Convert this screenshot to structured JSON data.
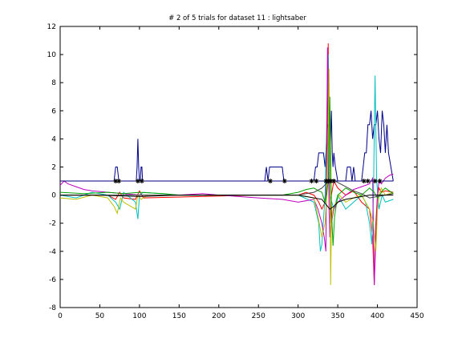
{
  "chart_data": {
    "type": "line",
    "title": "# 2 of 5 trials for dataset 11 : lightsaber",
    "xlabel": "",
    "ylabel": "",
    "xlim": [
      0,
      450
    ],
    "ylim": [
      -8,
      12
    ],
    "xticks": [
      0,
      50,
      100,
      150,
      200,
      250,
      300,
      350,
      400,
      450
    ],
    "yticks": [
      -8,
      -6,
      -4,
      -2,
      0,
      2,
      4,
      6,
      8,
      10,
      12
    ],
    "grid": false,
    "threshold_line": {
      "y": 1,
      "x": [
        0,
        420
      ],
      "color": "#000080"
    },
    "markers": {
      "y": 1,
      "x": [
        70,
        74,
        98,
        103,
        265,
        283,
        317,
        323,
        335,
        338,
        341,
        345,
        383,
        388,
        397,
        403
      ],
      "symbol": "*",
      "color": "#000000"
    },
    "series": [
      {
        "color": "#00008b",
        "x": [
          0,
          68,
          70,
          72,
          74,
          76,
          78,
          96,
          97,
          98,
          99,
          100,
          101,
          102,
          103,
          104,
          105,
          258,
          260,
          262,
          264,
          266,
          280,
          282,
          284,
          320,
          322,
          324,
          326,
          328,
          330,
          332,
          334,
          336,
          337,
          338,
          339,
          340,
          341,
          342,
          343,
          344,
          345,
          347,
          350,
          352,
          360,
          362,
          364,
          366,
          368,
          370,
          372,
          380,
          382,
          384,
          386,
          388,
          390,
          392,
          394,
          396,
          398,
          400,
          402,
          404,
          406,
          408,
          410,
          412,
          414,
          420
        ],
        "y": [
          1,
          1,
          2,
          2,
          1,
          1,
          1,
          1,
          2,
          4,
          2,
          1,
          1,
          2,
          2,
          1,
          1,
          1,
          2,
          1,
          2,
          2,
          2,
          1,
          1,
          1,
          2,
          2,
          3,
          3,
          3,
          3,
          2,
          4,
          5,
          5,
          3,
          2,
          4,
          6,
          3,
          2,
          3,
          2,
          1,
          1,
          1,
          2,
          2,
          2,
          1,
          2,
          1,
          1,
          2,
          3,
          3,
          5,
          5,
          6,
          4,
          5,
          5,
          6,
          4,
          3,
          6,
          5,
          3,
          5,
          3,
          1
        ]
      },
      {
        "color": "#ff0000",
        "x": [
          0,
          60,
          70,
          75,
          80,
          95,
          100,
          105,
          250,
          300,
          310,
          320,
          326,
          330,
          334,
          336,
          337,
          338,
          339,
          340,
          341,
          342,
          345,
          350,
          360,
          370,
          380,
          390,
          394,
          396,
          398,
          400,
          402,
          405,
          410,
          420
        ],
        "y": [
          0,
          0,
          -0.3,
          0.2,
          -0.2,
          -0.3,
          0.3,
          -0.2,
          0,
          0,
          0.2,
          0,
          -0.5,
          -1,
          -0.5,
          1,
          5,
          10.8,
          4,
          0,
          -2,
          0,
          1,
          0.5,
          0,
          0.3,
          -0.5,
          -1,
          -3,
          -6.4,
          -2,
          0,
          0.5,
          0.2,
          0.3,
          0.2
        ]
      },
      {
        "color": "#00bfbf",
        "x": [
          0,
          20,
          40,
          60,
          70,
          75,
          80,
          95,
          98,
          100,
          105,
          150,
          250,
          300,
          320,
          326,
          328,
          330,
          334,
          336,
          338,
          340,
          345,
          350,
          360,
          380,
          385,
          390,
          393,
          395,
          397,
          399,
          402,
          406,
          410,
          420
        ],
        "y": [
          0,
          -0.2,
          0.2,
          0,
          -0.5,
          -1,
          0.2,
          -0.5,
          -1.7,
          0,
          0.2,
          0,
          0,
          0,
          -0.5,
          -2,
          -4,
          -3.5,
          0,
          5,
          10,
          0,
          -1,
          0,
          -1,
          0,
          -0.5,
          -2,
          -3.5,
          0,
          8.5,
          1,
          -1,
          0,
          -0.5,
          -0.3
        ]
      },
      {
        "color": "#bf00bf",
        "x": [
          0,
          5,
          10,
          20,
          30,
          40,
          60,
          80,
          100,
          150,
          180,
          200,
          250,
          280,
          300,
          320,
          325,
          330,
          333,
          335,
          336,
          337,
          338,
          339,
          340,
          342,
          345,
          350,
          360,
          370,
          380,
          390,
          394,
          396,
          398,
          400,
          402,
          405,
          410,
          415,
          420
        ],
        "y": [
          0.7,
          1,
          0.8,
          0.6,
          0.4,
          0.3,
          0.2,
          0.1,
          0,
          0,
          0.1,
          0,
          -0.2,
          -0.3,
          -0.5,
          -0.3,
          -1,
          -2,
          -3,
          -4,
          3,
          10.5,
          8,
          -1,
          -3,
          -2,
          -1,
          -0.5,
          0,
          0.4,
          0.6,
          0.8,
          1.2,
          -6.4,
          -3,
          0,
          1,
          0.8,
          1.2,
          1.4,
          1.5
        ]
      },
      {
        "color": "#bfbf00",
        "x": [
          0,
          20,
          40,
          60,
          68,
          72,
          76,
          80,
          95,
          98,
          102,
          110,
          150,
          250,
          300,
          320,
          325,
          330,
          334,
          336,
          338,
          339,
          340,
          341,
          342,
          344,
          348,
          352,
          360,
          370,
          380,
          390,
          395,
          398,
          400,
          402,
          405,
          410,
          420
        ],
        "y": [
          -0.2,
          -0.3,
          0,
          -0.2,
          -0.8,
          -1.3,
          -0.2,
          -0.5,
          -1,
          0,
          -0.3,
          0,
          0,
          0,
          0,
          -0.2,
          -1.5,
          -3,
          -2,
          0,
          4,
          9,
          4,
          -6.4,
          -2,
          -1,
          -0.5,
          0,
          -0.5,
          -0.2,
          0,
          -1,
          -2,
          -4,
          -1,
          0,
          0.5,
          0,
          0.2
        ]
      },
      {
        "color": "#00a000",
        "x": [
          0,
          30,
          60,
          80,
          100,
          130,
          150,
          200,
          250,
          280,
          300,
          310,
          320,
          326,
          330,
          334,
          336,
          338,
          340,
          342,
          344,
          346,
          350,
          360,
          370,
          380,
          390,
          396,
          398,
          400,
          403,
          406,
          410,
          420
        ],
        "y": [
          0.2,
          0.1,
          0.2,
          0.1,
          0.2,
          0.1,
          0,
          0,
          0,
          0,
          0.2,
          0.4,
          0.5,
          0.3,
          0.2,
          -0.5,
          0,
          1,
          7,
          -1,
          -3.6,
          -1.5,
          0,
          0.5,
          0.2,
          0,
          0.5,
          0.2,
          0,
          -0.2,
          0,
          0.3,
          0.5,
          0.1
        ]
      },
      {
        "color": "#404040",
        "x": [
          0,
          50,
          100,
          150,
          200,
          250,
          300,
          310,
          320,
          330,
          335,
          340,
          345,
          350,
          360,
          370,
          380,
          390,
          400,
          410,
          420
        ],
        "y": [
          0,
          0,
          0,
          0,
          0,
          0,
          0,
          0.1,
          0.2,
          0.5,
          0.8,
          1,
          1.1,
          0.9,
          0.6,
          0.3,
          0.1,
          -0.2,
          -0.1,
          0,
          0.1
        ]
      },
      {
        "color": "#000000",
        "x": [
          0,
          50,
          100,
          150,
          200,
          250,
          300,
          320,
          330,
          340,
          345,
          350,
          360,
          370,
          380,
          390,
          400,
          410,
          420
        ],
        "y": [
          0,
          0,
          -0.1,
          0,
          0,
          0,
          0,
          -0.2,
          -0.3,
          -1,
          -0.8,
          -0.5,
          -0.3,
          -0.2,
          -0.1,
          0,
          0,
          0,
          0
        ]
      }
    ]
  }
}
